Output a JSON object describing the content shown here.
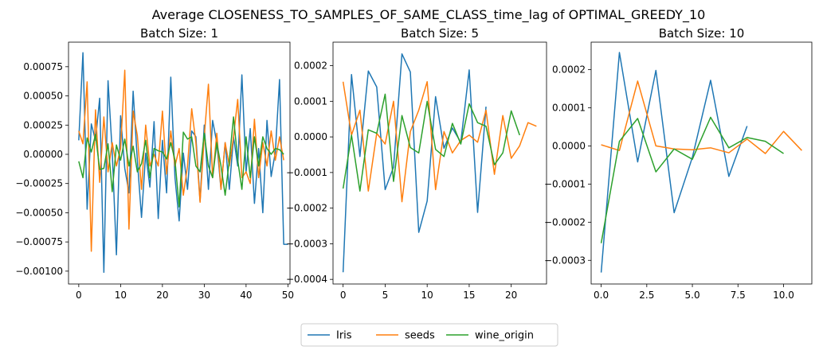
{
  "suptitle": "Average CLOSENESS_TO_SAMPLES_OF_SAME_CLASS_time_lag of OPTIMAL_GREEDY_10",
  "legend": {
    "placement": "bottom-center",
    "entries": [
      {
        "name": "Iris",
        "color": "#1f77b4"
      },
      {
        "name": "seeds",
        "color": "#ff7f0e"
      },
      {
        "name": "wine_origin",
        "color": "#2ca02c"
      }
    ]
  },
  "chart_data": [
    {
      "type": "line",
      "title": "Batch Size: 1",
      "xlabel": "",
      "ylabel": "",
      "xlim": [
        -2.45,
        50.5
      ],
      "ylim": [
        -0.00111,
        0.00096
      ],
      "xticks": [
        0,
        10,
        20,
        30,
        40,
        50
      ],
      "yticks": [
        -0.001,
        -0.00075,
        -0.0005,
        -0.00025,
        0,
        0.00025,
        0.0005,
        0.00075
      ],
      "ytick_labels": [
        "−0.00100",
        "−0.00075",
        "−0.00050",
        "−0.00025",
        "0.00000",
        "0.00025",
        "0.00050",
        "0.00075"
      ],
      "grid": false,
      "series": [
        {
          "name": "Iris",
          "color": "#1f77b4",
          "values": [
            0.00012,
            0.00087,
            -0.00047,
            0.00026,
            0.00012,
            0.00048,
            -0.00101,
            0.00063,
            2e-05,
            -0.00086,
            0.00033,
            -0.00012,
            -0.00033,
            0.00054,
            -5e-05,
            -0.00054,
            1e-05,
            -0.00028,
            0.00028,
            -0.00055,
            0.00012,
            -0.00033,
            0.00066,
            -0.0002,
            -0.00057,
            1e-05,
            -0.0003,
            0.0002,
            0.00015,
            -0.0004,
            0.00025,
            -0.0003,
            0.00029,
            0.0001,
            -0.0003,
            0.0001,
            -0.0003,
            0.00015,
            -0.0001,
            0.00068,
            -0.00015,
            0.00022,
            -0.00042,
            5e-05,
            -0.0005,
            0.00029,
            -0.00019,
            2e-05,
            0.00064,
            -0.00077,
            -0.00077
          ]
        },
        {
          "name": "seeds",
          "color": "#ff7f0e",
          "values": [
            0.0002,
            9e-05,
            0.00062,
            -0.00083,
            0.00038,
            -0.00024,
            0.00032,
            -0.00015,
            0.0001,
            -0.0001,
            5e-05,
            0.00072,
            -0.00064,
            0.00037,
            0.00016,
            -0.0003,
            0.00025,
            -0.0001,
            0.0,
            -0.0001,
            0.00037,
            -0.00017,
            0.0002,
            -0.0001,
            5e-05,
            -0.00035,
            -0.0001,
            0.00039,
            0.0001,
            -0.00041,
            0.00015,
            0.0006,
            -0.0002,
            0.00018,
            -0.0003,
            0.0001,
            -0.0001,
            0.00015,
            0.00047,
            -0.0002,
            -0.00015,
            -0.00025,
            0.0003,
            -0.0002,
            0.0001,
            -0.0001,
            0.0002,
            -5e-05,
            0.00015,
            -5e-05
          ]
        },
        {
          "name": "wine_origin",
          "color": "#2ca02c",
          "values": [
            -6e-05,
            -0.0002,
            0.00014,
            2e-05,
            0.00017,
            -0.00013,
            -0.00012,
            9e-05,
            -0.00032,
            8e-05,
            -5e-05,
            0.00013,
            -0.0001,
            7e-05,
            -0.00015,
            -8e-05,
            0.00012,
            -0.0002,
            5e-05,
            3e-05,
            2e-05,
            -4e-05,
            0.0001,
            -5e-05,
            -0.00045,
            0.00019,
            0.00013,
            0.00015,
            -0.0001,
            -0.00015,
            0.00018,
            -0.0001,
            -0.0002,
            0.0001,
            -0.0001,
            -0.00035,
            -5e-05,
            0.00032,
            -5e-05,
            -0.0003,
            0.00015,
            -0.0002,
            0.00015,
            -0.0001,
            0.00015,
            5e-05,
            0.0,
            5e-05,
            4e-05,
            0.0
          ]
        }
      ]
    },
    {
      "type": "line",
      "title": "Batch Size: 5",
      "xlabel": "",
      "ylabel": "",
      "xlim": [
        -1.2,
        24.2
      ],
      "ylim": [
        -0.000413,
        0.000266
      ],
      "xticks": [
        0,
        5,
        10,
        15,
        20
      ],
      "yticks": [
        -0.0004,
        -0.0003,
        -0.0002,
        -0.0001,
        0,
        0.0001,
        0.0002
      ],
      "ytick_labels": [
        "−0.0004",
        "−0.0003",
        "−0.0002",
        "−0.0001",
        "0.0000",
        "0.0001",
        "0.0002"
      ],
      "grid": false,
      "series": [
        {
          "name": "Iris",
          "color": "#1f77b4",
          "values": [
            -0.00038,
            0.000175,
            -5.5e-05,
            0.000185,
            0.00014,
            -0.000148,
            -8.5e-05,
            0.000233,
            0.000182,
            -0.000268,
            -0.00018,
            0.000113,
            -3.2e-05,
            2.5e-05,
            -1.5e-05,
            0.000188,
            -0.000212,
            8.5e-05
          ]
        },
        {
          "name": "seeds",
          "color": "#ff7f0e",
          "values": [
            0.000155,
            5e-06,
            7.5e-05,
            -0.000152,
            1e-05,
            -2e-05,
            0.0001,
            -0.000182,
            1.5e-05,
            7.5e-05,
            0.000155,
            -0.000148,
            1.5e-05,
            -4.5e-05,
            -1e-05,
            5e-06,
            -1.5e-05,
            7.5e-05,
            -0.000105,
            6e-05,
            -6e-05,
            -2.5e-05,
            4e-05,
            3e-05
          ]
        },
        {
          "name": "wine_origin",
          "color": "#2ca02c",
          "values": [
            -0.000145,
            5e-06,
            -0.000152,
            2e-05,
            1e-05,
            0.00012,
            -0.000125,
            6e-05,
            -3e-05,
            -4.5e-05,
            0.0001,
            -3.5e-05,
            -5.5e-05,
            3.8e-05,
            -2e-05,
            9.3e-05,
            4e-05,
            3e-05,
            -7.8e-05,
            -4.5e-05,
            7.3e-05,
            5e-06
          ]
        }
      ]
    },
    {
      "type": "line",
      "title": "Batch Size: 10",
      "xlabel": "",
      "ylabel": "",
      "xlim": [
        -0.55,
        11.55
      ],
      "ylim": [
        -0.000362,
        0.000272
      ],
      "xticks": [
        0,
        2.5,
        5,
        7.5,
        10
      ],
      "xtick_labels": [
        "0.0",
        "2.5",
        "5.0",
        "7.5",
        "10.0"
      ],
      "yticks": [
        -0.0003,
        -0.0002,
        -0.0001,
        0,
        0.0001,
        0.0002
      ],
      "ytick_labels": [
        "−0.0003",
        "−0.0002",
        "−0.0001",
        "0.0000",
        "0.0001",
        "0.0002"
      ],
      "grid": false,
      "series": [
        {
          "name": "Iris",
          "color": "#1f77b4",
          "values": [
            -0.000332,
            0.000245,
            -4.2e-05,
            0.000198,
            -0.000175,
            -3e-05,
            0.000172,
            -8e-05,
            5.2e-05
          ]
        },
        {
          "name": "seeds",
          "color": "#ff7f0e",
          "values": [
            3e-06,
            -1.2e-05,
            0.00017,
            0.0,
            -8e-06,
            -1e-05,
            -5e-06,
            -1.8e-05,
            1.8e-05,
            -2e-05,
            3.8e-05,
            -1.2e-05
          ]
        },
        {
          "name": "wine_origin",
          "color": "#2ca02c",
          "values": [
            -0.000255,
            1.2e-05,
            7.2e-05,
            -6.8e-05,
            -8e-06,
            -3.5e-05,
            7.5e-05,
            -5e-06,
            2.2e-05,
            1.2e-05,
            -2e-05
          ]
        }
      ]
    }
  ]
}
